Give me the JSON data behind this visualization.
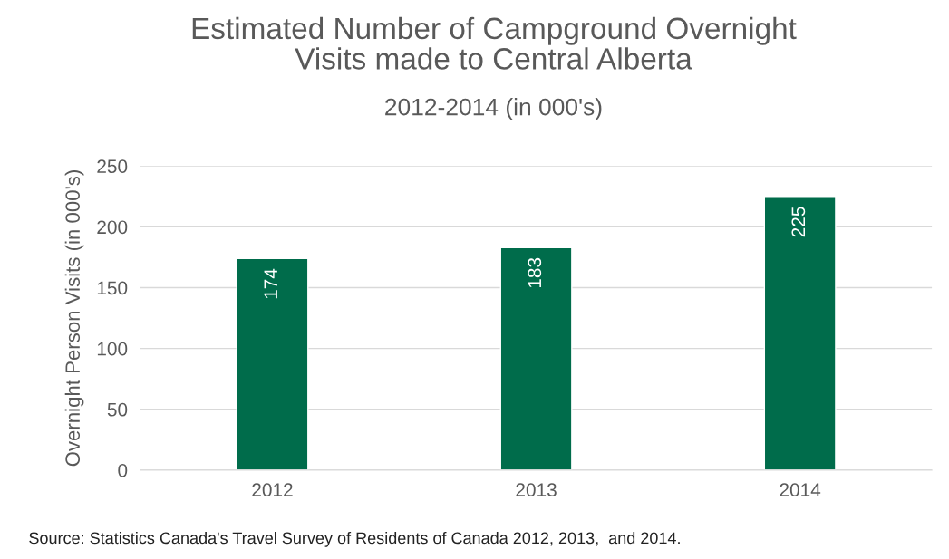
{
  "chart_data": {
    "type": "bar",
    "title": "Estimated Number of Campground Overnight\nVisits made to Central Alberta",
    "subtitle": "2012-2014 (in 000's)",
    "ylabel": "Overnight Person Visits (in 000's)",
    "categories": [
      "2012",
      "2013",
      "2014"
    ],
    "values": [
      174,
      183,
      225
    ],
    "color": "#006c4b",
    "ylim": [
      0,
      250
    ],
    "yticks": [
      0,
      50,
      100,
      150,
      200,
      250
    ],
    "grid": "y",
    "data_labels": true,
    "legend": false,
    "annotations": [
      "Source: Statistics Canada's Travel Survey of Residents of Canada 2012, 2013,  and 2014."
    ]
  }
}
